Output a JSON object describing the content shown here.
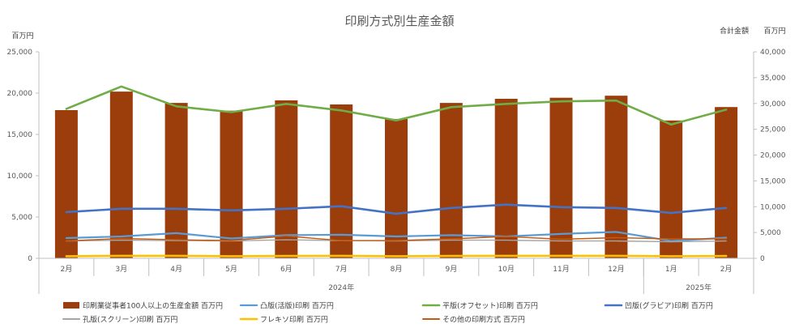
{
  "chart_data": {
    "type": "bar",
    "title": "印刷方式別生産金額",
    "left_axis_unit": "百万円",
    "right_axis_unit_1": "合計金額",
    "right_axis_unit_2": "百万円",
    "categories": [
      "2月",
      "3月",
      "4月",
      "5月",
      "6月",
      "7月",
      "8月",
      "9月",
      "10月",
      "11月",
      "12月",
      "1月",
      "2月"
    ],
    "year_groups": [
      {
        "label": "2024年",
        "start": 0,
        "end": 10
      },
      {
        "label": "2025年",
        "start": 11,
        "end": 12
      }
    ],
    "ylim_left": [
      0,
      25000
    ],
    "yticks_left": [
      "0",
      "5,000",
      "10,000",
      "15,000",
      "20,000",
      "25,000"
    ],
    "ylim_right": [
      0,
      40000
    ],
    "yticks_right": [
      "0",
      "5,000",
      "10,000",
      "15,000",
      "20,000",
      "25,000",
      "30,000",
      "35,000",
      "40,000"
    ],
    "grid": false,
    "legend_position": "bottom",
    "series": [
      {
        "name": "印刷業従事者100人以上の生産金額 百万円",
        "kind": "bar",
        "axis": "right",
        "color": "#9C3D0C",
        "values": [
          28700,
          32300,
          30100,
          28600,
          30600,
          29800,
          27000,
          30100,
          30900,
          31100,
          31500,
          26700,
          29300
        ]
      },
      {
        "name": "凸版(活版)印刷 百万円",
        "kind": "line",
        "axis": "left",
        "color": "#5B9BD5",
        "width": 2.2,
        "values": [
          2450,
          2650,
          3050,
          2400,
          2800,
          2850,
          2650,
          2800,
          2650,
          2950,
          3200,
          2100,
          2500
        ]
      },
      {
        "name": "平版(オフセット)印刷 百万円",
        "kind": "line",
        "axis": "left",
        "color": "#70AD47",
        "width": 2.6,
        "values": [
          18100,
          20800,
          18400,
          17700,
          18700,
          17900,
          16700,
          18300,
          18700,
          19000,
          19100,
          16200,
          18000
        ]
      },
      {
        "name": "凹版(グラビア)印刷 百万円",
        "kind": "line",
        "axis": "left",
        "color": "#4472C4",
        "width": 2.6,
        "values": [
          5600,
          6000,
          6000,
          5800,
          6000,
          6300,
          5400,
          6100,
          6500,
          6200,
          6100,
          5500,
          6100
        ]
      },
      {
        "name": "孔版(スクリーン)印刷 百万円",
        "kind": "line",
        "axis": "left",
        "color": "#A5A5A5",
        "width": 1.4,
        "values": [
          2100,
          2200,
          2150,
          2100,
          2250,
          2150,
          2100,
          2200,
          2200,
          2100,
          2100,
          2000,
          2100
        ]
      },
      {
        "name": "フレキソ印刷 百万円",
        "kind": "line",
        "axis": "left",
        "color": "#FFC000",
        "width": 2.6,
        "values": [
          250,
          300,
          300,
          250,
          280,
          300,
          250,
          280,
          300,
          300,
          300,
          250,
          280
        ]
      },
      {
        "name": "その他の印刷方式 百万円",
        "kind": "line",
        "axis": "left",
        "color": "#C55A11",
        "width": 1.4,
        "values": [
          2100,
          2400,
          2250,
          2150,
          2700,
          2150,
          2150,
          2350,
          2650,
          2300,
          2500,
          2350,
          2350
        ]
      }
    ]
  }
}
